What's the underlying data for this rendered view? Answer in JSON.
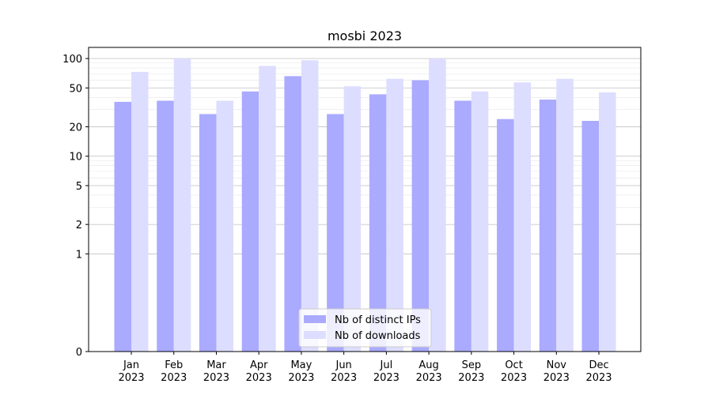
{
  "chart_data": {
    "type": "bar",
    "title": "mosbi 2023",
    "xlabel": "",
    "ylabel": "",
    "yscale": "symlog",
    "ylim": [
      0,
      130
    ],
    "y_ticks": [
      0,
      1,
      2,
      5,
      10,
      20,
      50,
      100
    ],
    "categories": [
      "Jan\n2023",
      "Feb\n2023",
      "Mar\n2023",
      "Apr\n2023",
      "May\n2023",
      "Jun\n2023",
      "Jul\n2023",
      "Aug\n2023",
      "Sep\n2023",
      "Oct\n2023",
      "Nov\n2023",
      "Dec\n2023"
    ],
    "series": [
      {
        "name": "Nb of distinct IPs",
        "color": "#aaaaff",
        "values": [
          36,
          37,
          27,
          46,
          66,
          27,
          43,
          60,
          37,
          24,
          38,
          23
        ]
      },
      {
        "name": "Nb of downloads",
        "color": "#ddddff",
        "values": [
          73,
          100,
          37,
          84,
          96,
          52,
          62,
          100,
          46,
          57,
          62,
          45
        ]
      }
    ],
    "grid": true,
    "legend_position": "bottom-center"
  }
}
